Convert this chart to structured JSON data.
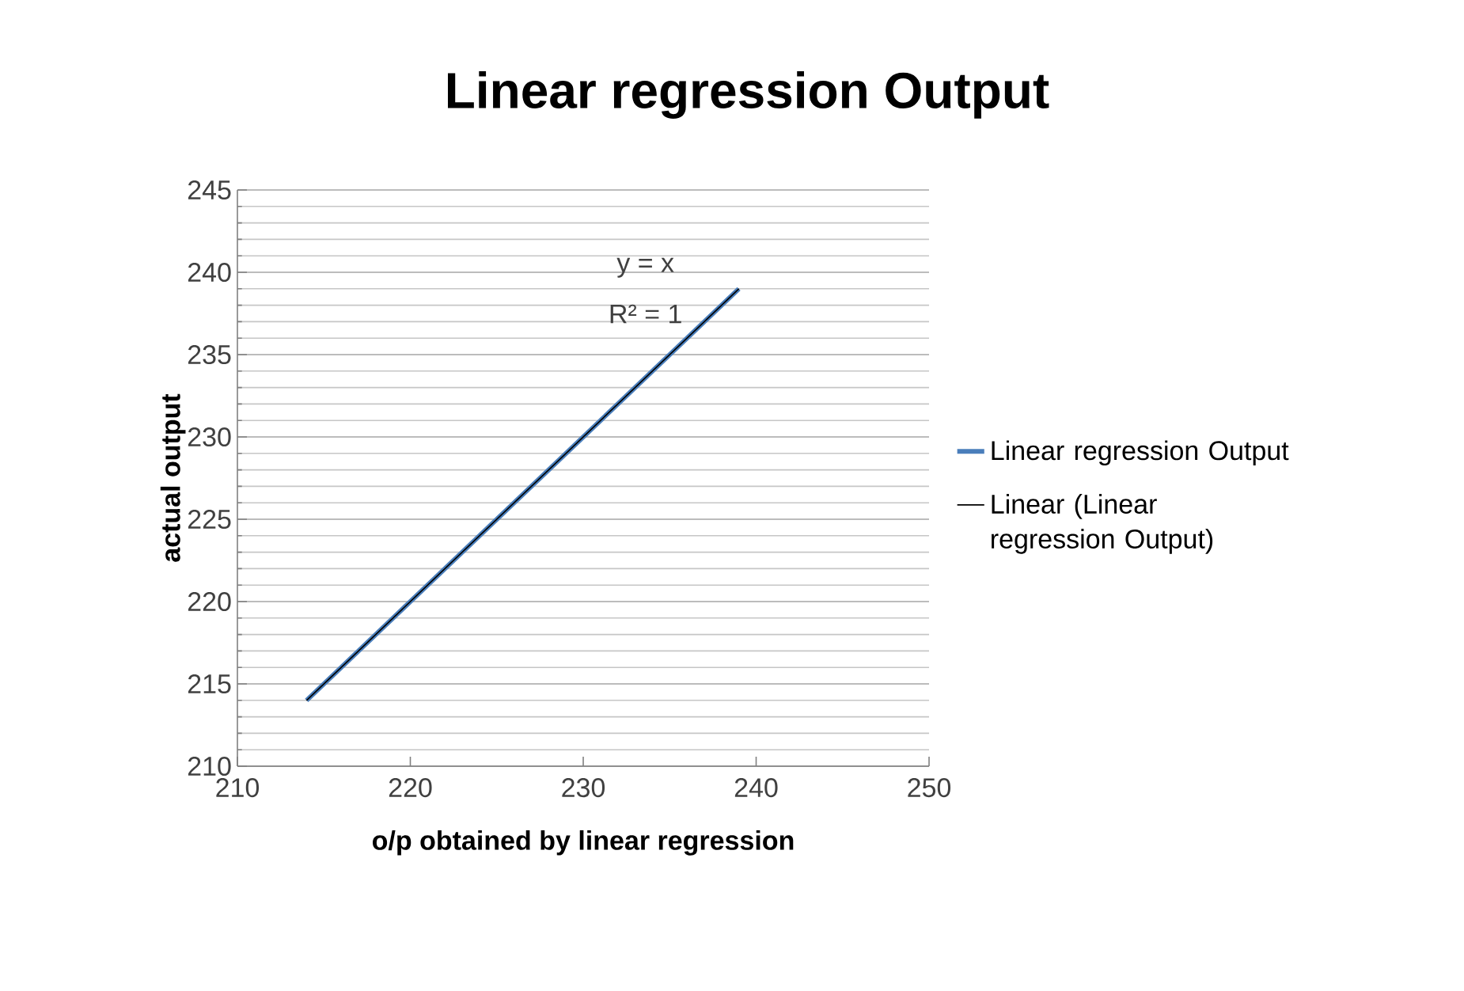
{
  "chart_data": {
    "type": "line",
    "title": "Linear regression Output",
    "xlabel": "o/p obtained by linear regression",
    "ylabel": "actual output",
    "x": [
      214,
      239
    ],
    "series": [
      {
        "name": "Linear regression Output",
        "color": "#4a7ebb",
        "values": [
          214,
          239
        ]
      },
      {
        "name": "Linear (Linear regression Output)",
        "color": "#000000",
        "values": [
          214,
          239
        ]
      }
    ],
    "xlim": [
      210,
      250
    ],
    "xticks": [
      210,
      220,
      230,
      240,
      250
    ],
    "ylim": [
      210,
      245
    ],
    "yticks": [
      210,
      215,
      220,
      225,
      230,
      235,
      240,
      245
    ],
    "grid": "y",
    "legend": "right",
    "annotations": [
      "y = x",
      "R² = 1"
    ]
  }
}
